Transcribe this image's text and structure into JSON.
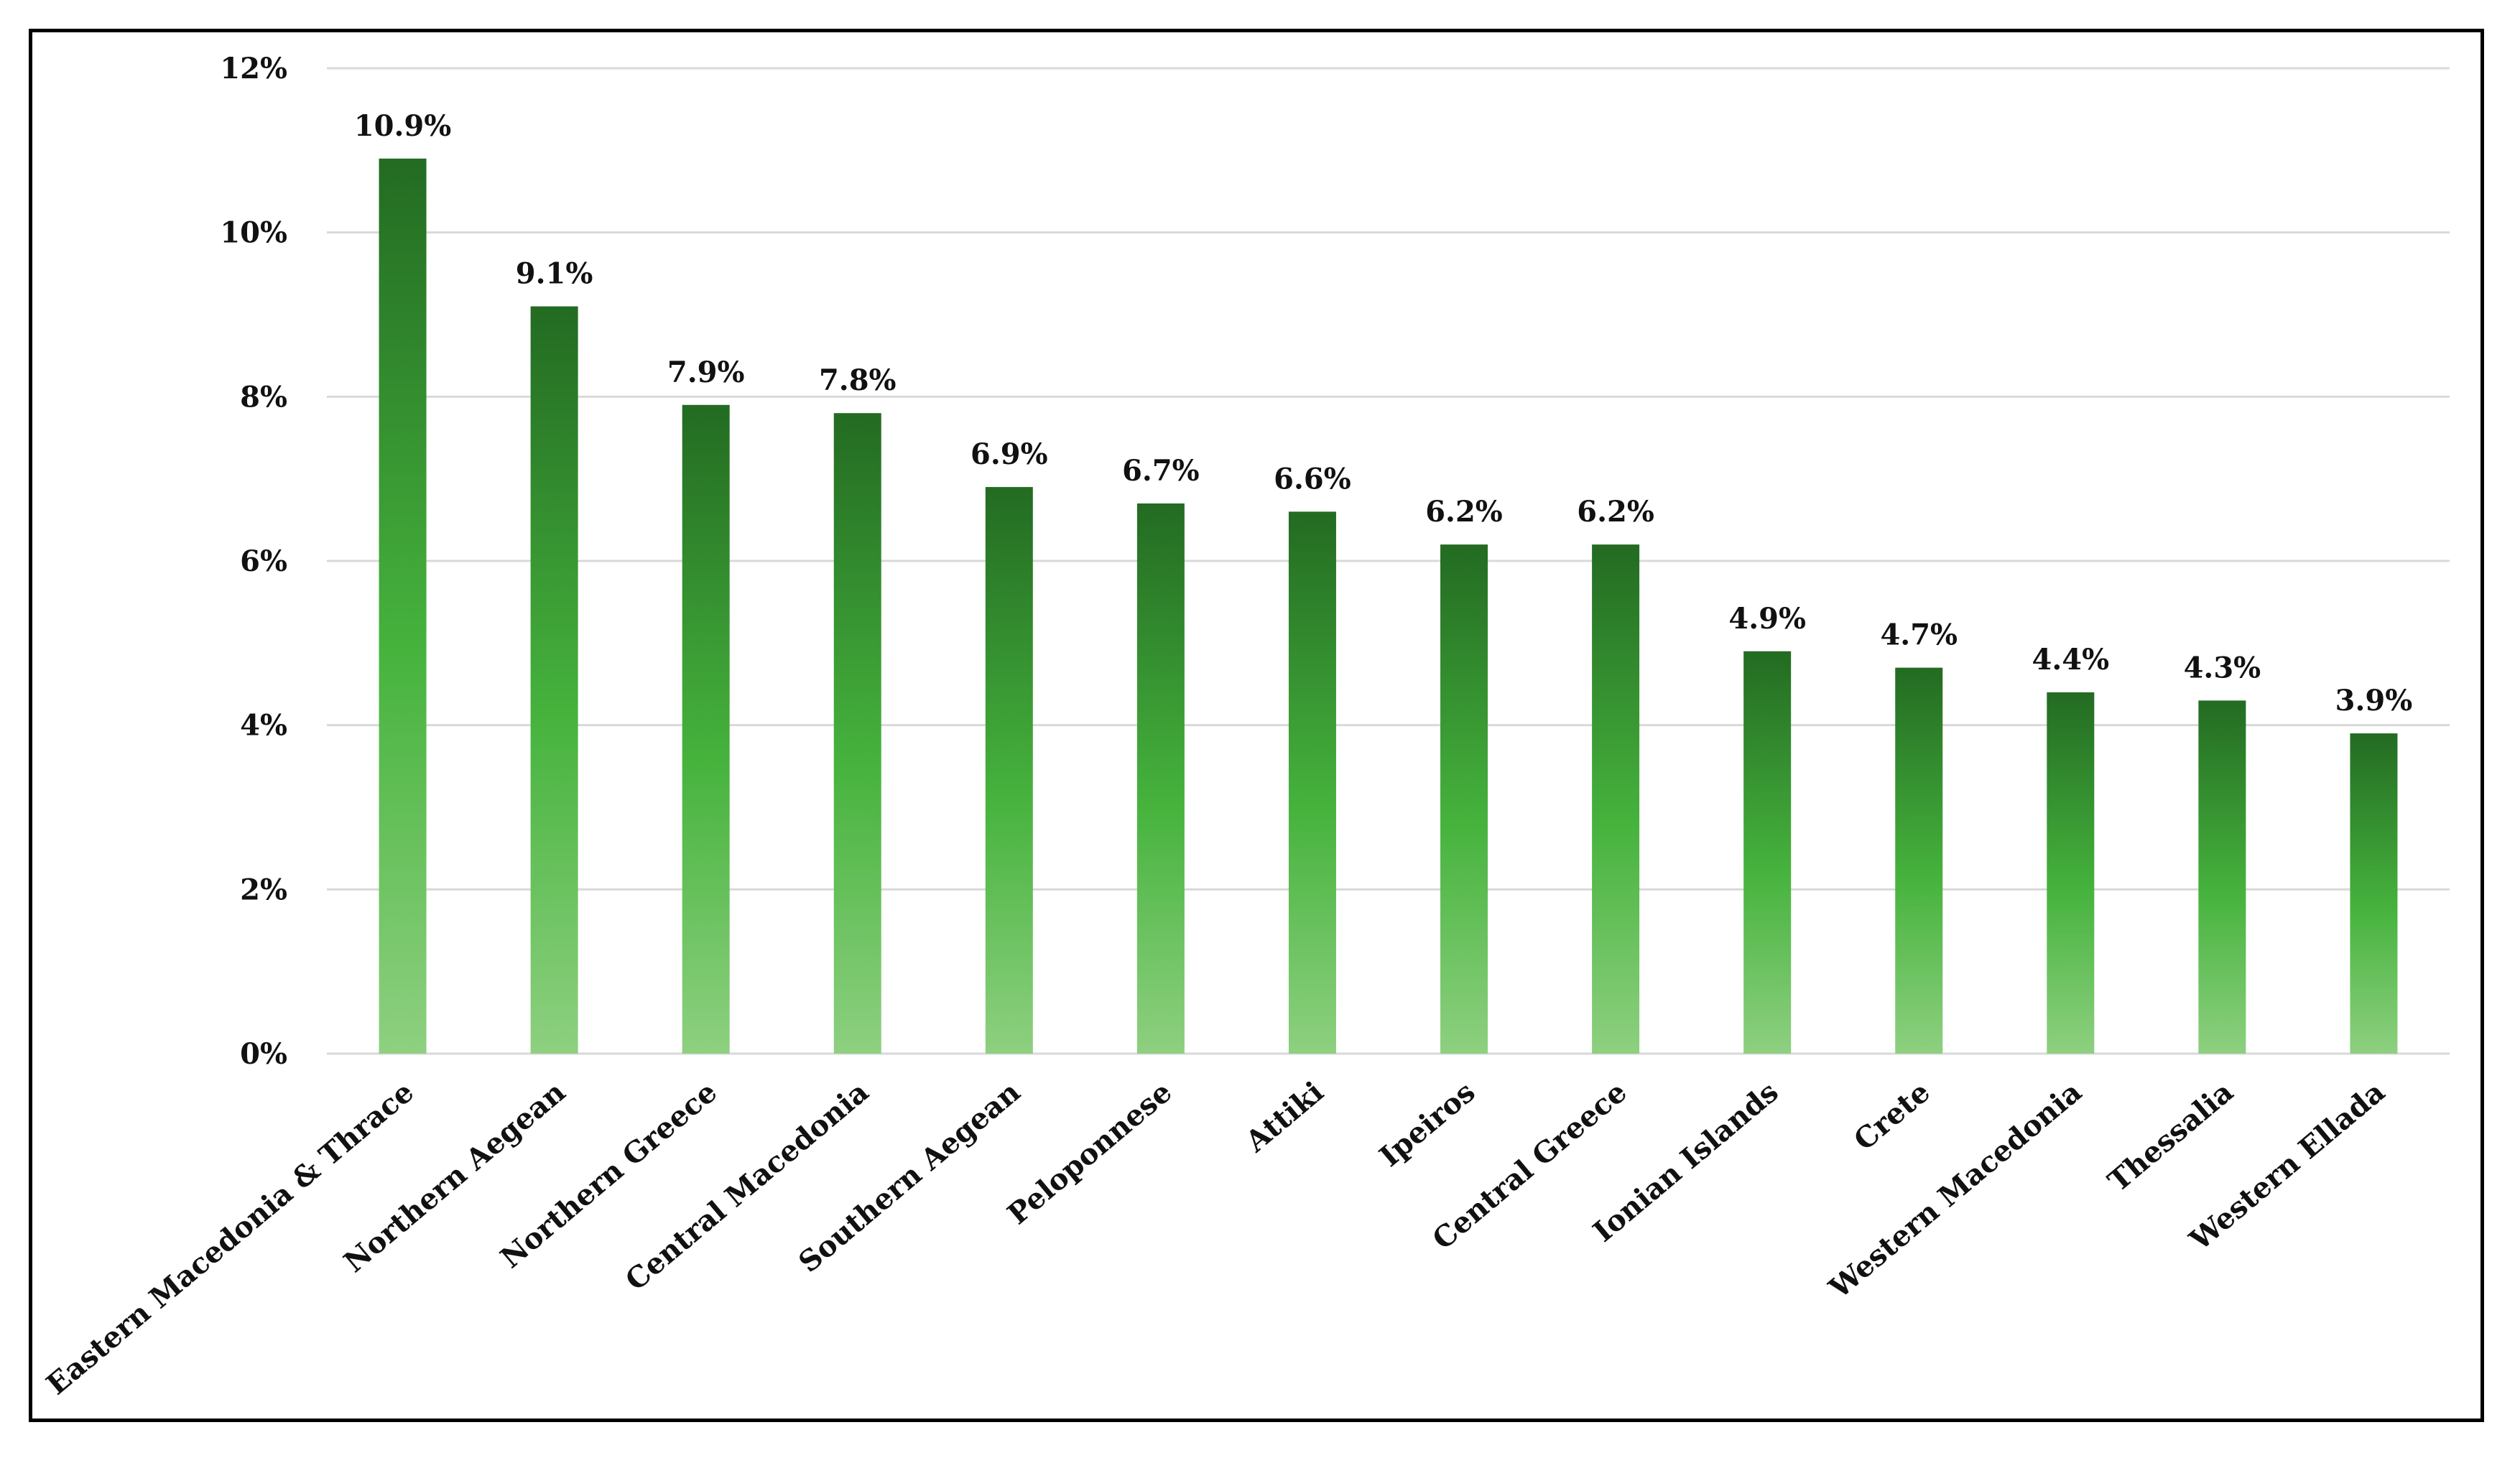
{
  "chart_data": {
    "type": "bar",
    "title": "",
    "xlabel": "",
    "ylabel": "",
    "categories": [
      "Eastern Macedonia & Thrace",
      "Northern Aegean",
      "Northern Greece",
      "Central Macedonia",
      "Southern Aegean",
      "Peloponnese",
      "Attiki",
      "Ipeiros",
      "Central Greece",
      "Ionian Islands",
      "Crete",
      "Western Macedonia",
      "Thessalia",
      "Western Ellada"
    ],
    "values": [
      10.9,
      9.1,
      7.9,
      7.8,
      6.9,
      6.7,
      6.6,
      6.2,
      6.2,
      4.9,
      4.7,
      4.4,
      4.3,
      3.9
    ],
    "data_labels": [
      "10.9%",
      "9.1%",
      "7.9%",
      "7.8%",
      "6.9%",
      "6.7%",
      "6.6%",
      "6.2%",
      "6.2%",
      "4.9%",
      "4.7%",
      "4.4%",
      "4.3%",
      "3.9%"
    ],
    "ylim": [
      0,
      12
    ],
    "yticks": [
      0,
      2,
      4,
      6,
      8,
      10,
      12
    ],
    "ytick_labels": [
      "0%",
      "2%",
      "4%",
      "6%",
      "8%",
      "10%",
      "12%"
    ],
    "grid": true,
    "legend": "none",
    "colors": {
      "bar_top": "#236b22",
      "bar_mid": "#46b33d",
      "bar_bottom": "#8ed080",
      "grid": "#d9d9d9",
      "frame": "#000000"
    }
  }
}
